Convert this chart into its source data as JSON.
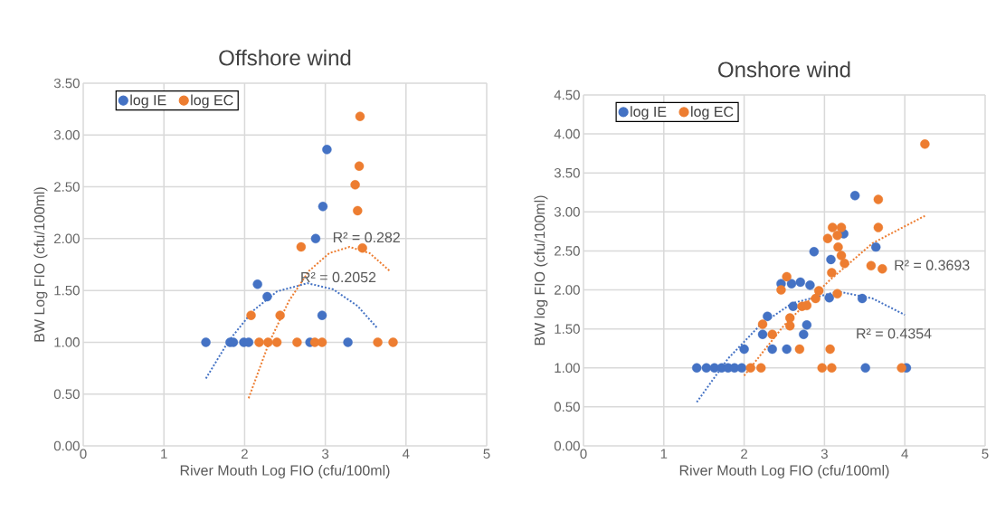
{
  "chart_data": [
    {
      "type": "scatter",
      "title": "Offshore wind",
      "xlabel": "River Mouth Log FIO (cfu/100ml)",
      "ylabel": "BW Log FIO (cfu/100ml)",
      "xlim": [
        0,
        5
      ],
      "ylim": [
        0,
        3.5
      ],
      "xticks": [
        0,
        1,
        2,
        3,
        4,
        5
      ],
      "yticks": [
        {
          "value": 0,
          "label": "0.00"
        },
        {
          "value": 0.5,
          "label": "0.50"
        },
        {
          "value": 1,
          "label": "1.00"
        },
        {
          "value": 1.5,
          "label": "1.50"
        },
        {
          "value": 2,
          "label": "2.00"
        },
        {
          "value": 2.5,
          "label": "2.50"
        },
        {
          "value": 3,
          "label": "3.00"
        },
        {
          "value": 3.5,
          "label": "3.50"
        }
      ],
      "grid": true,
      "legend": "top left",
      "series": [
        {
          "name": "log IE",
          "marker": "circle",
          "color": "#4472c4",
          "x": [
            1.52,
            1.82,
            1.86,
            1.99,
            2.05,
            2.16,
            2.28,
            2.81,
            2.88,
            2.96,
            2.97,
            3.02,
            3.28
          ],
          "values": [
            1.0,
            1.0,
            1.0,
            1.0,
            1.0,
            1.56,
            1.44,
            1.0,
            2.0,
            1.26,
            2.31,
            2.86,
            1.0
          ]
        },
        {
          "name": "log EC",
          "marker": "circle",
          "color": "#ed7d31",
          "x": [
            2.08,
            2.18,
            2.29,
            2.4,
            2.44,
            2.65,
            2.7,
            2.87,
            2.96,
            3.37,
            3.4,
            3.42,
            3.43,
            3.46,
            3.65,
            3.84
          ],
          "values": [
            1.26,
            1.0,
            1.0,
            1.0,
            1.26,
            1.0,
            1.92,
            1.0,
            1.0,
            2.52,
            2.27,
            2.7,
            3.18,
            1.91,
            1.0,
            1.0
          ]
        },
        {
          "type": "line",
          "marker": "none",
          "line_style": "dotted",
          "color": "#4472c4",
          "x": [
            1.52,
            1.8,
            2.1,
            2.4,
            2.78,
            3.1,
            3.4,
            3.64
          ],
          "values": [
            0.65,
            1.01,
            1.3,
            1.49,
            1.57,
            1.51,
            1.35,
            1.14
          ]
        },
        {
          "type": "line",
          "marker": "none",
          "line_style": "dotted",
          "color": "#ed7d31",
          "x": [
            2.05,
            2.3,
            2.55,
            2.8,
            3.05,
            3.3,
            3.55,
            3.81
          ],
          "values": [
            0.46,
            0.99,
            1.4,
            1.69,
            1.86,
            1.92,
            1.86,
            1.68
          ]
        }
      ],
      "annotations": [
        "R² = 0.282",
        "R² = 0.2052"
      ]
    },
    {
      "type": "scatter",
      "title": "Onshore wind",
      "xlabel": "River Mouth Log FIO (cfu/100ml)",
      "ylabel": "BW log FIO (cfu/100ml)",
      "xlim": [
        0,
        5
      ],
      "ylim": [
        0,
        4.5
      ],
      "xticks": [
        0,
        1,
        2,
        3,
        4,
        5
      ],
      "yticks": [
        {
          "value": 0,
          "label": "0.00"
        },
        {
          "value": 0.5,
          "label": "0.50"
        },
        {
          "value": 1,
          "label": "1.00"
        },
        {
          "value": 1.5,
          "label": "1.50"
        },
        {
          "value": 2,
          "label": "2.00"
        },
        {
          "value": 2.5,
          "label": "2.50"
        },
        {
          "value": 3,
          "label": "3.00"
        },
        {
          "value": 3.5,
          "label": "3.50"
        },
        {
          "value": 4,
          "label": "4.00"
        },
        {
          "value": 4.5,
          "label": "4.50"
        }
      ],
      "grid": true,
      "legend": "top left",
      "series": [
        {
          "name": "log IE",
          "marker": "circle",
          "color": "#4472c4",
          "x": [
            1.41,
            1.53,
            1.63,
            1.72,
            1.8,
            1.88,
            1.97,
            2.0,
            2.23,
            2.29,
            2.35,
            2.46,
            2.53,
            2.59,
            2.61,
            2.7,
            2.74,
            2.78,
            2.82,
            2.87,
            3.06,
            3.08,
            3.24,
            3.38,
            3.47,
            3.51,
            3.64,
            4.02
          ],
          "values": [
            1.0,
            1.0,
            1.0,
            1.0,
            1.0,
            1.0,
            1.0,
            1.24,
            1.43,
            1.66,
            1.24,
            2.08,
            1.24,
            2.08,
            1.79,
            2.1,
            1.43,
            1.55,
            2.06,
            2.49,
            1.9,
            2.39,
            2.72,
            3.21,
            1.89,
            1.0,
            2.55,
            1.0
          ]
        },
        {
          "name": "log EC",
          "marker": "circle",
          "color": "#ed7d31",
          "x": [
            2.08,
            2.21,
            2.23,
            2.35,
            2.46,
            2.53,
            2.57,
            2.57,
            2.69,
            2.72,
            2.78,
            2.89,
            2.93,
            2.97,
            3.04,
            3.07,
            3.09,
            3.09,
            3.1,
            3.16,
            3.16,
            3.17,
            3.21,
            3.21,
            3.25,
            3.58,
            3.67,
            3.67,
            3.72,
            3.96,
            4.25
          ],
          "values": [
            1.0,
            1.0,
            1.56,
            1.43,
            2.0,
            2.17,
            1.64,
            1.54,
            1.24,
            1.79,
            1.8,
            1.89,
            1.99,
            1.0,
            2.66,
            1.24,
            2.22,
            1.0,
            2.8,
            2.7,
            1.95,
            2.55,
            2.8,
            2.44,
            2.34,
            2.31,
            3.16,
            2.8,
            2.27,
            1.0,
            3.87
          ]
        },
        {
          "type": "line",
          "marker": "none",
          "line_style": "dotted",
          "color": "#4472c4",
          "x": [
            1.41,
            1.8,
            2.2,
            2.6,
            3.17,
            3.6,
            4.0
          ],
          "values": [
            0.56,
            1.12,
            1.55,
            1.83,
            1.98,
            1.89,
            1.68
          ]
        },
        {
          "type": "line",
          "marker": "none",
          "line_style": "dotted",
          "color": "#ed7d31",
          "x": [
            2.0,
            2.5,
            3.06,
            3.6,
            4.25
          ],
          "values": [
            0.9,
            1.55,
            2.12,
            2.6,
            2.95
          ]
        }
      ],
      "annotations": [
        "R² = 0.3693",
        "R² = 0.4354"
      ]
    }
  ]
}
